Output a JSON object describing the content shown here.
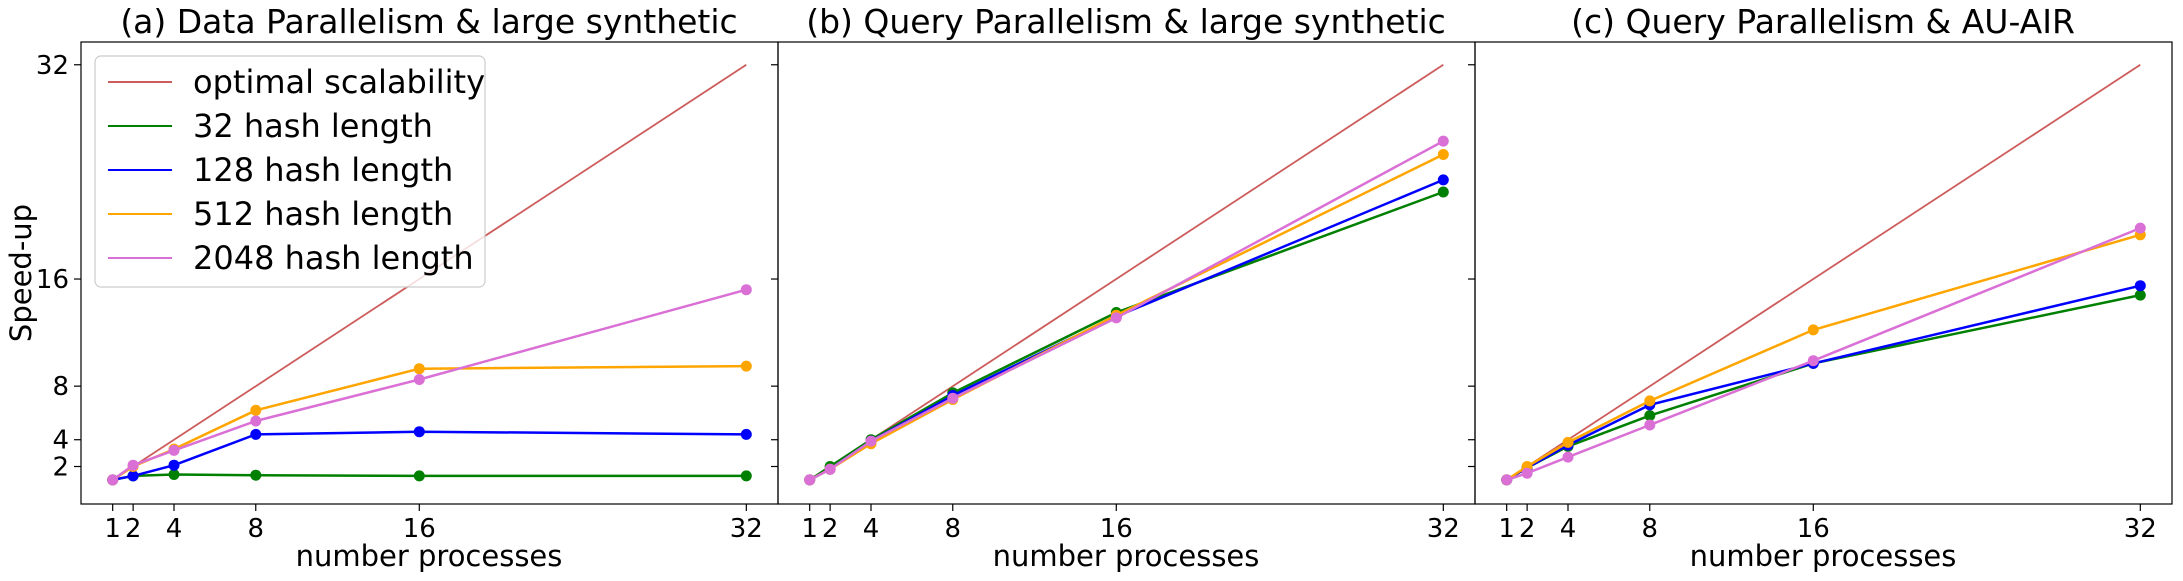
{
  "figure": {
    "ylabel": "Speed-up",
    "xlabel": "number processes"
  },
  "legend": {
    "entries": [
      {
        "label": "optimal scalability",
        "color": "#cd5c5c"
      },
      {
        "label": "32 hash length",
        "color": "#008000"
      },
      {
        "label": "128 hash length",
        "color": "#0000ff"
      },
      {
        "label": "512 hash length",
        "color": "#ffa500"
      },
      {
        "label": "2048 hash length",
        "color": "#da70d6"
      }
    ]
  },
  "chart_data": [
    {
      "type": "line",
      "title": "(a) Data Parallelism & large synthetic",
      "xlabel": "number processes",
      "ylabel": "Speed-up",
      "x": [
        1,
        2,
        4,
        8,
        16,
        32
      ],
      "xticks": [
        "1",
        "2",
        "4",
        "8",
        "16",
        "32"
      ],
      "yticks": [
        "2",
        "4",
        "8",
        "16",
        "32"
      ],
      "ylim": [
        -0.8,
        33.7
      ],
      "grid": false,
      "legend_position": "top-left",
      "series": [
        {
          "name": "optimal scalability",
          "color": "#cd5c5c",
          "markers": false,
          "values": [
            1,
            2,
            4,
            8,
            16,
            32
          ]
        },
        {
          "name": "32 hash length",
          "color": "#008000",
          "markers": true,
          "values": [
            1,
            1.3,
            1.4,
            1.35,
            1.3,
            1.3
          ]
        },
        {
          "name": "128 hash length",
          "color": "#0000ff",
          "markers": true,
          "values": [
            1,
            1.3,
            2.1,
            4.4,
            4.6,
            4.4
          ]
        },
        {
          "name": "512 hash length",
          "color": "#ffa500",
          "markers": true,
          "values": [
            1,
            2,
            3.3,
            6.2,
            9.3,
            9.5
          ]
        },
        {
          "name": "2048 hash length",
          "color": "#da70d6",
          "markers": true,
          "values": [
            1,
            2.1,
            3.2,
            5.4,
            8.5,
            15.2
          ]
        }
      ]
    },
    {
      "type": "line",
      "title": "(b) Query Parallelism & large synthetic",
      "xlabel": "number processes",
      "x": [
        1,
        2,
        4,
        8,
        16,
        32
      ],
      "xticks": [
        "1",
        "2",
        "4",
        "8",
        "16",
        "32"
      ],
      "ylim": [
        -0.8,
        33.7
      ],
      "grid": false,
      "series": [
        {
          "name": "optimal scalability",
          "color": "#cd5c5c",
          "markers": false,
          "values": [
            1,
            2,
            4,
            8,
            16,
            32
          ]
        },
        {
          "name": "32 hash length",
          "color": "#008000",
          "markers": true,
          "values": [
            1,
            2,
            4,
            7.5,
            13.5,
            22.5
          ]
        },
        {
          "name": "128 hash length",
          "color": "#0000ff",
          "markers": true,
          "values": [
            1,
            1.8,
            3.9,
            7.3,
            13.2,
            23.4
          ]
        },
        {
          "name": "512 hash length",
          "color": "#ffa500",
          "markers": true,
          "values": [
            1,
            1.8,
            3.7,
            7.0,
            13.3,
            25.3
          ]
        },
        {
          "name": "2048 hash length",
          "color": "#da70d6",
          "markers": true,
          "values": [
            1,
            1.8,
            3.9,
            7.1,
            13.1,
            26.3
          ]
        }
      ]
    },
    {
      "type": "line",
      "title": "(c) Query Parallelism & AU-AIR",
      "xlabel": "number processes",
      "x": [
        1,
        2,
        4,
        8,
        16,
        32
      ],
      "xticks": [
        "1",
        "2",
        "4",
        "8",
        "16",
        "32"
      ],
      "ylim": [
        -0.8,
        33.7
      ],
      "grid": false,
      "series": [
        {
          "name": "optimal scalability",
          "color": "#cd5c5c",
          "markers": false,
          "values": [
            1,
            2,
            4,
            8,
            16,
            32
          ]
        },
        {
          "name": "32 hash length",
          "color": "#008000",
          "markers": true,
          "values": [
            1,
            1.9,
            3.5,
            5.8,
            9.7,
            14.8
          ]
        },
        {
          "name": "128 hash length",
          "color": "#0000ff",
          "markers": true,
          "values": [
            1,
            1.9,
            3.6,
            6.6,
            9.7,
            15.5
          ]
        },
        {
          "name": "512 hash length",
          "color": "#ffa500",
          "markers": true,
          "values": [
            1,
            2.0,
            3.8,
            6.9,
            12.2,
            19.3
          ]
        },
        {
          "name": "2048 hash length",
          "color": "#da70d6",
          "markers": true,
          "values": [
            1,
            1.5,
            2.7,
            5.1,
            9.9,
            19.8
          ]
        }
      ]
    }
  ]
}
